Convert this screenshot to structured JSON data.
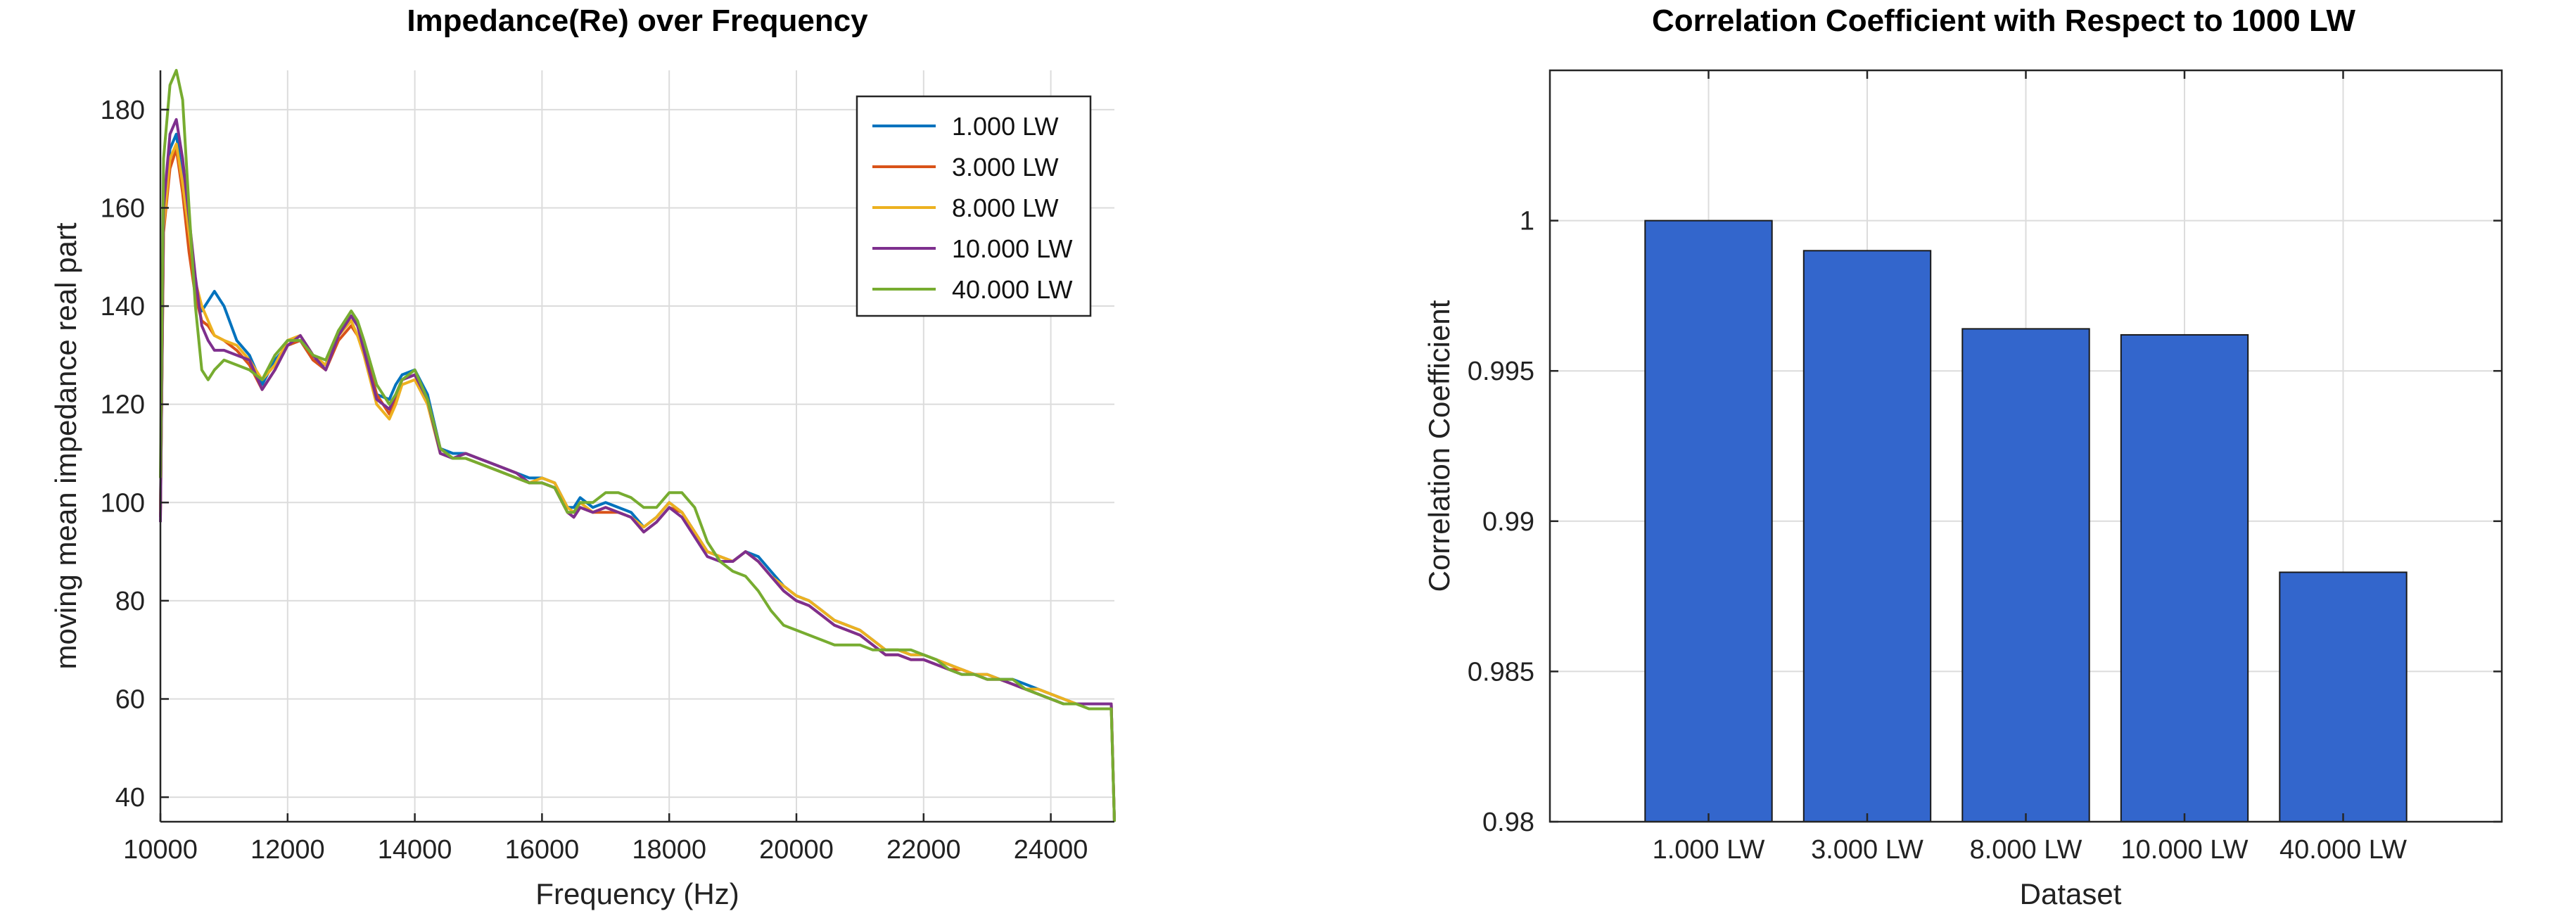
{
  "chart_data": [
    {
      "type": "line",
      "title": "Impedance(Re) over Frequency",
      "xlabel": "Frequency (Hz)",
      "ylabel": "moving mean impedance real part",
      "xlim": [
        10000,
        25000
      ],
      "ylim": [
        35,
        188
      ],
      "xticks": [
        10000,
        12000,
        14000,
        16000,
        18000,
        20000,
        22000,
        24000
      ],
      "yticks": [
        40,
        60,
        80,
        100,
        120,
        140,
        160,
        180
      ],
      "grid": true,
      "legend_position": "top-right",
      "x": [
        10000,
        10050,
        10150,
        10250,
        10350,
        10450,
        10550,
        10650,
        10750,
        10850,
        11000,
        11200,
        11400,
        11600,
        11800,
        12000,
        12200,
        12400,
        12600,
        12800,
        13000,
        13100,
        13200,
        13400,
        13600,
        13700,
        13800,
        14000,
        14200,
        14400,
        14600,
        14800,
        15000,
        15200,
        15400,
        15600,
        15800,
        16000,
        16200,
        16400,
        16500,
        16600,
        16800,
        17000,
        17200,
        17400,
        17600,
        17800,
        18000,
        18200,
        18400,
        18600,
        18800,
        19000,
        19200,
        19400,
        19600,
        19800,
        20000,
        20200,
        20400,
        20600,
        20800,
        21000,
        21200,
        21400,
        21600,
        21800,
        22000,
        22200,
        22400,
        22600,
        22800,
        23000,
        23200,
        23400,
        23600,
        23800,
        24000,
        24200,
        24400,
        24600,
        24800,
        24950,
        25000
      ],
      "series": [
        {
          "name": "1.000 LW",
          "color": "#0072BD",
          "values": [
            98,
            158,
            172,
            175,
            166,
            153,
            143,
            139,
            141,
            143,
            140,
            133,
            130,
            124,
            129,
            132,
            133,
            129,
            128,
            135,
            138,
            136,
            132,
            122,
            121,
            124,
            126,
            127,
            122,
            111,
            110,
            110,
            109,
            108,
            107,
            106,
            105,
            105,
            104,
            99,
            99,
            101,
            99,
            100,
            99,
            98,
            95,
            97,
            100,
            98,
            94,
            90,
            89,
            88,
            90,
            89,
            86,
            83,
            81,
            80,
            78,
            76,
            75,
            74,
            72,
            70,
            70,
            69,
            69,
            68,
            67,
            66,
            65,
            65,
            64,
            64,
            63,
            62,
            61,
            60,
            59,
            59,
            59,
            59,
            35
          ]
        },
        {
          "name": "3.000 LW",
          "color": "#D95319",
          "values": [
            97,
            155,
            168,
            172,
            163,
            151,
            142,
            137,
            136,
            134,
            133,
            131,
            128,
            123,
            127,
            132,
            133,
            129,
            127,
            133,
            136,
            134,
            131,
            122,
            118,
            121,
            125,
            126,
            121,
            111,
            109,
            109,
            108,
            107,
            106,
            105,
            104,
            104,
            103,
            98,
            97,
            99,
            98,
            98,
            98,
            97,
            94,
            96,
            99,
            98,
            94,
            90,
            89,
            88,
            90,
            88,
            85,
            82,
            80,
            79,
            77,
            75,
            74,
            73,
            71,
            69,
            69,
            68,
            68,
            67,
            66,
            66,
            65,
            64,
            64,
            63,
            62,
            61,
            60,
            59,
            59,
            59,
            59,
            59,
            35
          ]
        },
        {
          "name": "8.000 LW",
          "color": "#EDB120",
          "values": [
            98,
            156,
            170,
            173,
            165,
            155,
            145,
            140,
            137,
            134,
            133,
            132,
            129,
            125,
            128,
            133,
            134,
            130,
            128,
            134,
            137,
            134,
            130,
            120,
            117,
            120,
            124,
            125,
            120,
            110,
            109,
            110,
            109,
            108,
            107,
            106,
            104,
            105,
            104,
            99,
            98,
            100,
            98,
            99,
            98,
            97,
            95,
            97,
            100,
            98,
            94,
            90,
            89,
            88,
            90,
            88,
            85,
            83,
            81,
            80,
            78,
            76,
            75,
            74,
            72,
            70,
            70,
            69,
            69,
            68,
            67,
            66,
            65,
            65,
            64,
            63,
            62,
            62,
            61,
            60,
            59,
            59,
            59,
            59,
            35
          ]
        },
        {
          "name": "10.000 LW",
          "color": "#7E2F8E",
          "values": [
            96,
            160,
            175,
            178,
            170,
            158,
            146,
            136,
            133,
            131,
            131,
            130,
            129,
            123,
            127,
            132,
            134,
            130,
            127,
            134,
            138,
            136,
            131,
            121,
            119,
            122,
            125,
            126,
            121,
            110,
            109,
            110,
            109,
            108,
            107,
            106,
            104,
            104,
            103,
            98,
            97,
            99,
            98,
            99,
            98,
            97,
            94,
            96,
            99,
            97,
            93,
            89,
            88,
            88,
            90,
            88,
            85,
            82,
            80,
            79,
            77,
            75,
            74,
            73,
            71,
            69,
            69,
            68,
            68,
            67,
            66,
            65,
            65,
            64,
            64,
            63,
            62,
            61,
            60,
            59,
            59,
            59,
            59,
            59,
            35
          ]
        },
        {
          "name": "40.000 LW",
          "color": "#77AC30",
          "values": [
            105,
            170,
            185,
            188,
            182,
            160,
            140,
            127,
            125,
            127,
            129,
            128,
            127,
            125,
            130,
            133,
            133,
            130,
            129,
            135,
            139,
            137,
            133,
            124,
            120,
            122,
            125,
            127,
            121,
            111,
            109,
            109,
            108,
            107,
            106,
            105,
            104,
            104,
            103,
            98,
            98,
            100,
            100,
            102,
            102,
            101,
            99,
            99,
            102,
            102,
            99,
            92,
            88,
            86,
            85,
            82,
            78,
            75,
            74,
            73,
            72,
            71,
            71,
            71,
            70,
            70,
            70,
            70,
            69,
            68,
            66,
            65,
            65,
            64,
            64,
            64,
            62,
            61,
            60,
            59,
            59,
            58,
            58,
            58,
            35
          ]
        }
      ]
    },
    {
      "type": "bar",
      "title": "Correlation Coefficient with Respect to 1000 LW",
      "xlabel": "Dataset",
      "ylabel": "Correlation Coefficient",
      "categories": [
        "1.000 LW",
        "3.000 LW",
        "8.000 LW",
        "10.000 LW",
        "40.000 LW"
      ],
      "values": [
        1.0,
        0.999,
        0.9964,
        0.9962,
        0.9883
      ],
      "ylim": [
        0.98,
        1.005
      ],
      "yticks": [
        0.98,
        0.985,
        0.99,
        0.995,
        1.0
      ],
      "ytick_labels": [
        "0.98",
        "0.985",
        "0.99",
        "0.995",
        "1"
      ],
      "bar_color": "#3366CC",
      "grid": true
    }
  ]
}
